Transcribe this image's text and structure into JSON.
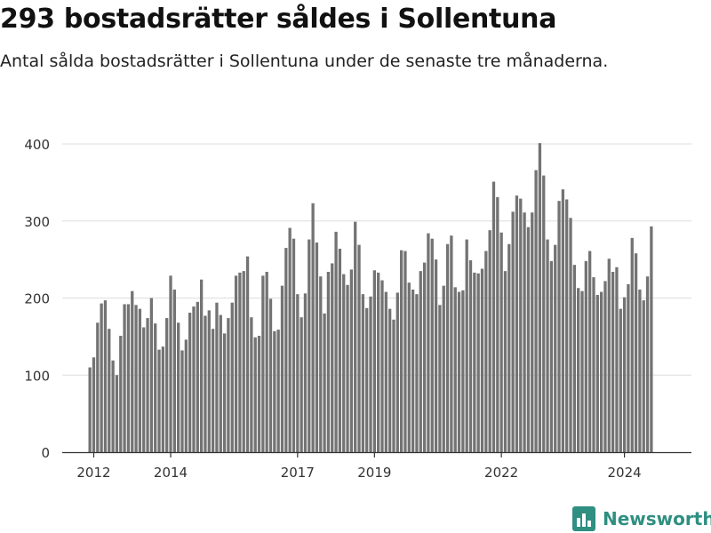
{
  "title": "293 bostadsrätter såldes i Sollentuna",
  "subtitle": "Antal sålda bostadsrätter i Sollentuna under de senaste tre månaderna.",
  "brand": {
    "name": "Newsworthy"
  },
  "colors": {
    "bar": "#737373",
    "highlight": "#2a9d8f",
    "grid": "#dddddd",
    "axis": "#333333",
    "brand": "#2f8f81"
  },
  "chart_data": {
    "type": "bar",
    "title": "293 bostadsrätter såldes i Sollentuna",
    "subtitle": "Antal sålda bostadsrätter i Sollentuna under de senaste tre månaderna.",
    "xlabel": "",
    "ylabel": "",
    "ylim": [
      0,
      400
    ],
    "yticks": [
      0,
      100,
      200,
      300,
      400
    ],
    "xticks": [
      {
        "label": "2012",
        "index": 1
      },
      {
        "label": "2014",
        "index": 21
      },
      {
        "label": "2017",
        "index": 54
      },
      {
        "label": "2019",
        "index": 74
      },
      {
        "label": "2022",
        "index": 107
      },
      {
        "label": "2024",
        "index": 139
      }
    ],
    "grid": true,
    "legend": "none",
    "highlight_index": 149,
    "annotation": {
      "index": 149,
      "text": "293"
    },
    "values": [
      110,
      123,
      168,
      193,
      197,
      160,
      119,
      100,
      151,
      192,
      192,
      209,
      191,
      186,
      162,
      174,
      200,
      167,
      133,
      137,
      174,
      229,
      211,
      168,
      132,
      146,
      181,
      189,
      195,
      224,
      177,
      184,
      160,
      194,
      178,
      154,
      174,
      194,
      229,
      233,
      235,
      254,
      175,
      149,
      151,
      229,
      234,
      199,
      157,
      159,
      216,
      265,
      291,
      277,
      205,
      175,
      206,
      276,
      323,
      272,
      228,
      180,
      234,
      245,
      286,
      264,
      231,
      217,
      237,
      299,
      269,
      205,
      187,
      202,
      236,
      233,
      223,
      208,
      186,
      172,
      207,
      262,
      261,
      220,
      211,
      205,
      235,
      246,
      284,
      277,
      250,
      191,
      216,
      270,
      281,
      214,
      208,
      210,
      276,
      249,
      233,
      232,
      238,
      261,
      288,
      351,
      331,
      285,
      235,
      270,
      312,
      333,
      329,
      311,
      292,
      311,
      366,
      401,
      359,
      276,
      248,
      269,
      326,
      341,
      328,
      304,
      243,
      213,
      209,
      248,
      261,
      227,
      204,
      208,
      222,
      251,
      234,
      240,
      186,
      201,
      218,
      278,
      258,
      211,
      197,
      228,
      293
    ]
  }
}
